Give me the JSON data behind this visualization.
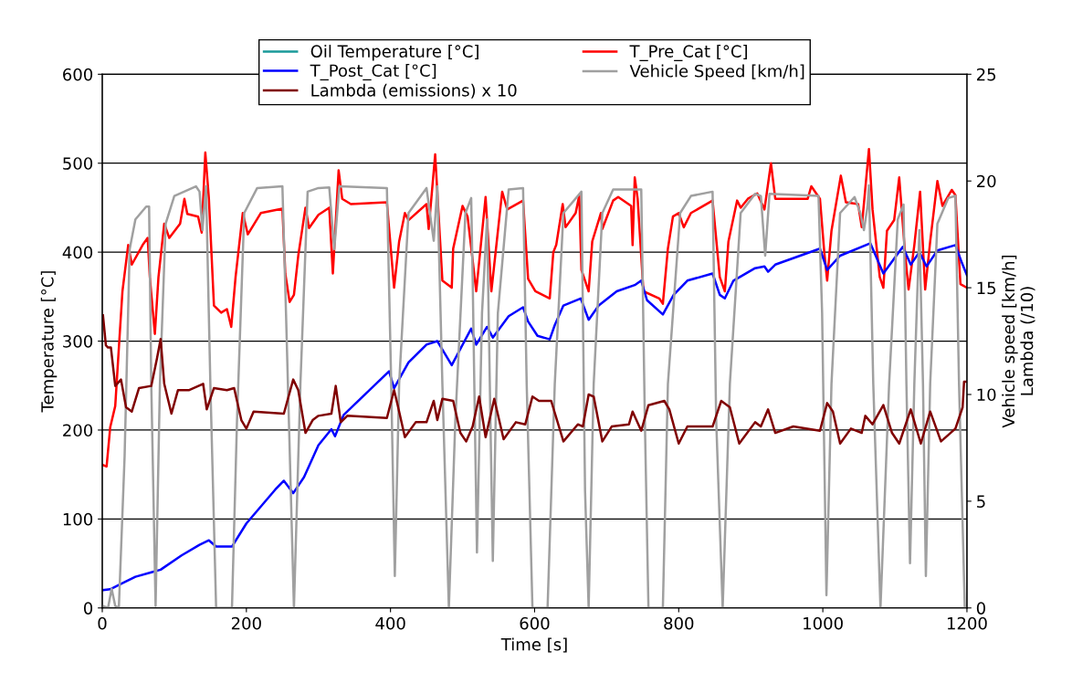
{
  "chart_data": {
    "type": "line",
    "xlabel": "Time [s]",
    "ylabel": "Temperature [°C]",
    "y2label": "Vehicle speed [km/h]\nLambda (/10)",
    "xlim": [
      0,
      1200
    ],
    "xticks": [
      0,
      200,
      400,
      600,
      800,
      1000,
      1200
    ],
    "ylim": [
      0,
      600
    ],
    "yticks": [
      0,
      100,
      200,
      300,
      400,
      500,
      600
    ],
    "y2lim": [
      0,
      25
    ],
    "y2ticks": [
      0,
      5,
      10,
      15,
      20,
      25
    ],
    "grid": "y",
    "legend": "top",
    "line_style": "solid",
    "marker": "none",
    "series": [
      {
        "name": "Oil Temperature [°C]",
        "color": "#1a9a9a"
      },
      {
        "name": "T_Pre_Cat [°C]",
        "color": "#ff0000",
        "x": [
          0,
          6,
          11,
          18,
          23,
          28,
          36,
          41,
          56,
          63,
          66,
          73,
          78,
          86,
          93,
          108,
          114,
          118,
          133,
          138,
          143,
          148,
          155,
          165,
          173,
          179,
          185,
          195,
          202,
          220,
          250,
          254,
          260,
          266,
          272,
          282,
          287,
          300,
          315,
          320,
          328,
          333,
          345,
          395,
          405,
          412,
          420,
          425,
          450,
          453,
          462,
          472,
          485,
          487,
          500,
          507,
          519,
          532,
          540,
          555,
          562,
          584,
          591,
          601,
          621,
          626,
          630,
          639,
          643,
          657,
          662,
          665,
          675,
          680,
          692,
          694,
          709,
          716,
          734,
          736,
          739,
          743,
          751,
          773,
          778,
          785,
          792,
          800,
          807,
          817,
          847,
          857,
          864,
          869,
          881,
          886,
          896,
          909,
          919,
          928,
          934,
          979,
          984,
          996,
          1002,
          1006,
          1012,
          1025,
          1032,
          1049,
          1054,
          1064,
          1069,
          1079,
          1084,
          1089,
          1099,
          1106,
          1114,
          1119,
          1127,
          1135,
          1142,
          1149,
          1159,
          1166,
          1179,
          1184,
          1191,
          1200
        ],
        "values": [
          161,
          159,
          203,
          227,
          292,
          356,
          408,
          386,
          408,
          416,
          372,
          308,
          372,
          432,
          416,
          432,
          460,
          443,
          440,
          422,
          512,
          460,
          340,
          332,
          336,
          316,
          372,
          444,
          420,
          444,
          449,
          376,
          344,
          352,
          396,
          450,
          427,
          442,
          450,
          376,
          492,
          460,
          454,
          456,
          360,
          412,
          444,
          436,
          454,
          426,
          510,
          368,
          360,
          404,
          452,
          440,
          356,
          462,
          356,
          468,
          448,
          458,
          370,
          356,
          348,
          400,
          408,
          454,
          428,
          444,
          464,
          380,
          356,
          412,
          444,
          426,
          458,
          462,
          452,
          408,
          484,
          460,
          356,
          348,
          342,
          404,
          440,
          444,
          428,
          444,
          458,
          372,
          356,
          412,
          458,
          450,
          460,
          466,
          448,
          500,
          460,
          460,
          474,
          460,
          400,
          368,
          424,
          486,
          456,
          454,
          428,
          516,
          448,
          372,
          360,
          424,
          436,
          484,
          400,
          358,
          408,
          468,
          358,
          412,
          480,
          452,
          470,
          464,
          364,
          360
        ]
      },
      {
        "name": "T_Post_Cat [°C]",
        "color": "#0000ff",
        "x": [
          0,
          11,
          26,
          46,
          68,
          81,
          110,
          135,
          148,
          158,
          180,
          200,
          240,
          252,
          265,
          280,
          300,
          318,
          323,
          335,
          398,
          405,
          425,
          450,
          465,
          485,
          512,
          519,
          534,
          542,
          564,
          584,
          591,
          604,
          621,
          628,
          640,
          664,
          675,
          689,
          714,
          739,
          748,
          756,
          778,
          793,
          812,
          847,
          857,
          864,
          876,
          906,
          919,
          924,
          934,
          996,
          1006,
          1024,
          1066,
          1084,
          1111,
          1122,
          1134,
          1144,
          1159,
          1184,
          1193,
          1200
        ],
        "values": [
          20,
          21,
          27,
          35,
          40,
          43,
          59,
          71,
          76,
          69,
          69,
          95,
          133,
          143,
          129,
          147,
          183,
          201,
          193,
          217,
          266,
          247,
          276,
          296,
          300,
          273,
          314,
          296,
          316,
          304,
          328,
          338,
          322,
          306,
          302,
          318,
          340,
          348,
          324,
          340,
          356,
          363,
          368,
          346,
          330,
          352,
          368,
          376,
          352,
          348,
          368,
          382,
          384,
          378,
          386,
          404,
          380,
          396,
          410,
          376,
          406,
          386,
          400,
          384,
          402,
          408,
          388,
          374
        ]
      },
      {
        "name": "Vehicle Speed [km/h]",
        "color": "#a0a0a0",
        "axis": "y2",
        "x": [
          0,
          8,
          13,
          18,
          23,
          31,
          38,
          46,
          61,
          65,
          68,
          74,
          80,
          88,
          100,
          130,
          135,
          139,
          144,
          150,
          158,
          180,
          187,
          197,
          215,
          250,
          255,
          266,
          275,
          285,
          300,
          315,
          322,
          329,
          395,
          401,
          406,
          412,
          425,
          450,
          460,
          465,
          472,
          481,
          490,
          504,
          512,
          514,
          520,
          527,
          534,
          542,
          549,
          564,
          584,
          589,
          597,
          618,
          628,
          640,
          665,
          670,
          675,
          682,
          694,
          709,
          748,
          753,
          758,
          778,
          785,
          802,
          817,
          847,
          852,
          861,
          871,
          886,
          906,
          914,
          920,
          926,
          994,
          999,
          1005,
          1012,
          1024,
          1044,
          1052,
          1057,
          1062,
          1064,
          1070,
          1080,
          1092,
          1104,
          1112,
          1116,
          1121,
          1127,
          1134,
          1139,
          1143,
          1149,
          1159,
          1174,
          1184,
          1189,
          1197,
          1200
        ],
        "values": [
          0.1,
          0,
          0.9,
          0.1,
          0,
          7.1,
          16.8,
          18.2,
          18.8,
          18.8,
          10.5,
          0.1,
          10.5,
          18.0,
          19.3,
          19.75,
          19.5,
          17.7,
          19.75,
          10.5,
          0,
          0,
          8.8,
          18.5,
          19.67,
          19.75,
          13.8,
          0,
          10.5,
          19.5,
          19.67,
          19.7,
          16.8,
          19.75,
          19.67,
          10.5,
          1.5,
          10.5,
          18.5,
          19.67,
          17.2,
          19.75,
          10.5,
          0,
          8.8,
          18.5,
          19.2,
          15.5,
          2.6,
          13.8,
          18.2,
          2.2,
          13.8,
          19.6,
          19.67,
          10.5,
          0,
          0,
          10.5,
          18.5,
          19.5,
          5.5,
          0,
          10.5,
          18.5,
          19.6,
          19.6,
          8.8,
          0,
          0,
          10.5,
          18.5,
          19.3,
          19.5,
          8.8,
          0,
          10.5,
          18.5,
          19.4,
          19.3,
          16.5,
          19.4,
          19.3,
          13.8,
          0.6,
          10.5,
          18.5,
          19.25,
          18.5,
          17.7,
          18.8,
          19.8,
          10.5,
          0,
          10.5,
          18.2,
          18.9,
          10.5,
          2.1,
          10.5,
          17.7,
          10.5,
          1.5,
          10.5,
          18.0,
          19.2,
          19.3,
          10.5,
          0,
          0
        ]
      },
      {
        "name": "Lambda (emissions) x 10",
        "color": "#800000",
        "axis": "y2",
        "x": [
          1,
          5,
          8,
          12,
          18,
          26,
          33,
          41,
          51,
          68,
          76,
          81,
          86,
          96,
          105,
          120,
          140,
          145,
          155,
          173,
          183,
          193,
          200,
          210,
          252,
          265,
          272,
          282,
          292,
          300,
          318,
          324,
          331,
          340,
          395,
          405,
          410,
          420,
          435,
          450,
          460,
          465,
          472,
          487,
          497,
          505,
          514,
          523,
          532,
          544,
          557,
          574,
          587,
          597,
          606,
          623,
          640,
          660,
          667,
          675,
          682,
          694,
          707,
          731,
          736,
          748,
          758,
          780,
          787,
          800,
          812,
          847,
          859,
          871,
          884,
          906,
          914,
          924,
          934,
          959,
          996,
          1006,
          1014,
          1024,
          1039,
          1054,
          1059,
          1069,
          1084,
          1096,
          1106,
          1122,
          1136,
          1149,
          1164,
          1184,
          1194,
          1196,
          1200
        ],
        "values": [
          13.7,
          12.3,
          12.2,
          12.2,
          10.4,
          10.7,
          9.4,
          9.2,
          10.3,
          10.4,
          11.7,
          12.6,
          10.5,
          9.1,
          10.2,
          10.2,
          10.5,
          9.3,
          10.3,
          10.2,
          10.3,
          8.8,
          8.4,
          9.2,
          9.1,
          10.7,
          10.2,
          8.2,
          8.8,
          9.0,
          9.1,
          10.4,
          8.7,
          9.0,
          8.9,
          10.2,
          9.5,
          8.0,
          8.7,
          8.7,
          9.7,
          8.8,
          9.8,
          9.7,
          8.2,
          7.8,
          8.5,
          9.9,
          8.0,
          9.8,
          7.9,
          8.7,
          8.6,
          9.9,
          9.7,
          9.7,
          7.8,
          8.6,
          8.5,
          10.0,
          9.9,
          7.8,
          8.5,
          8.6,
          9.2,
          8.3,
          9.5,
          9.7,
          9.3,
          7.7,
          8.5,
          8.5,
          9.7,
          9.4,
          7.7,
          8.7,
          8.5,
          9.3,
          8.2,
          8.5,
          8.3,
          9.6,
          9.2,
          7.7,
          8.4,
          8.2,
          9.0,
          8.6,
          9.5,
          8.2,
          7.7,
          9.3,
          7.7,
          9.2,
          7.8,
          8.4,
          9.4,
          10.6,
          10.6
        ]
      }
    ]
  }
}
